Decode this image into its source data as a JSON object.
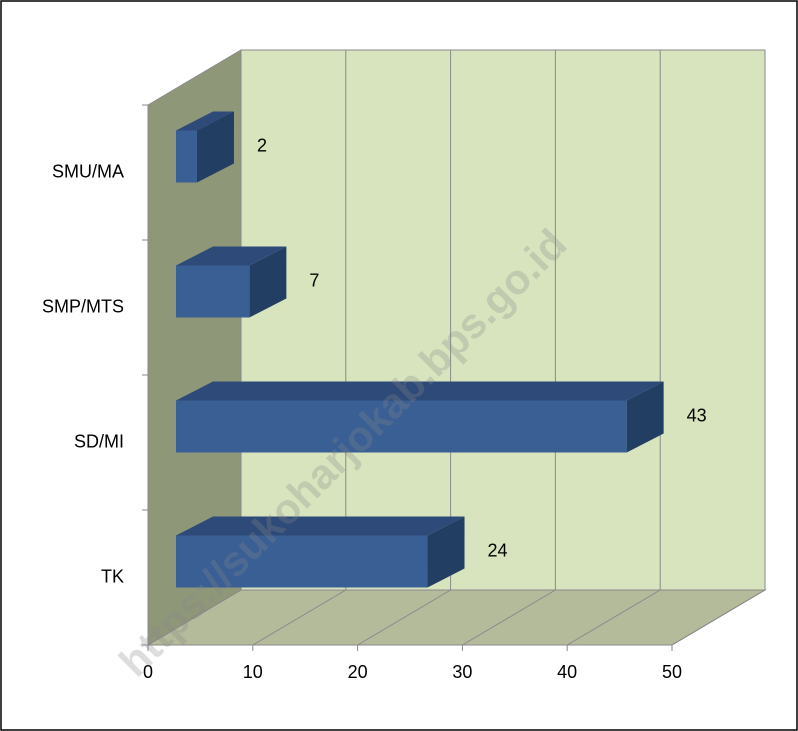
{
  "chart_data": {
    "type": "bar",
    "orientation": "horizontal",
    "categories": [
      "TK",
      "SD/MI",
      "SMP/MTS",
      "SMU/MA"
    ],
    "values": [
      24,
      43,
      7,
      2
    ],
    "color": "#3a5f95",
    "xlim": [
      0,
      50
    ],
    "xticks": [
      0,
      10,
      20,
      30,
      40,
      50
    ],
    "grid": true
  },
  "watermark": "https://sukoharjokab.bps.go.id"
}
